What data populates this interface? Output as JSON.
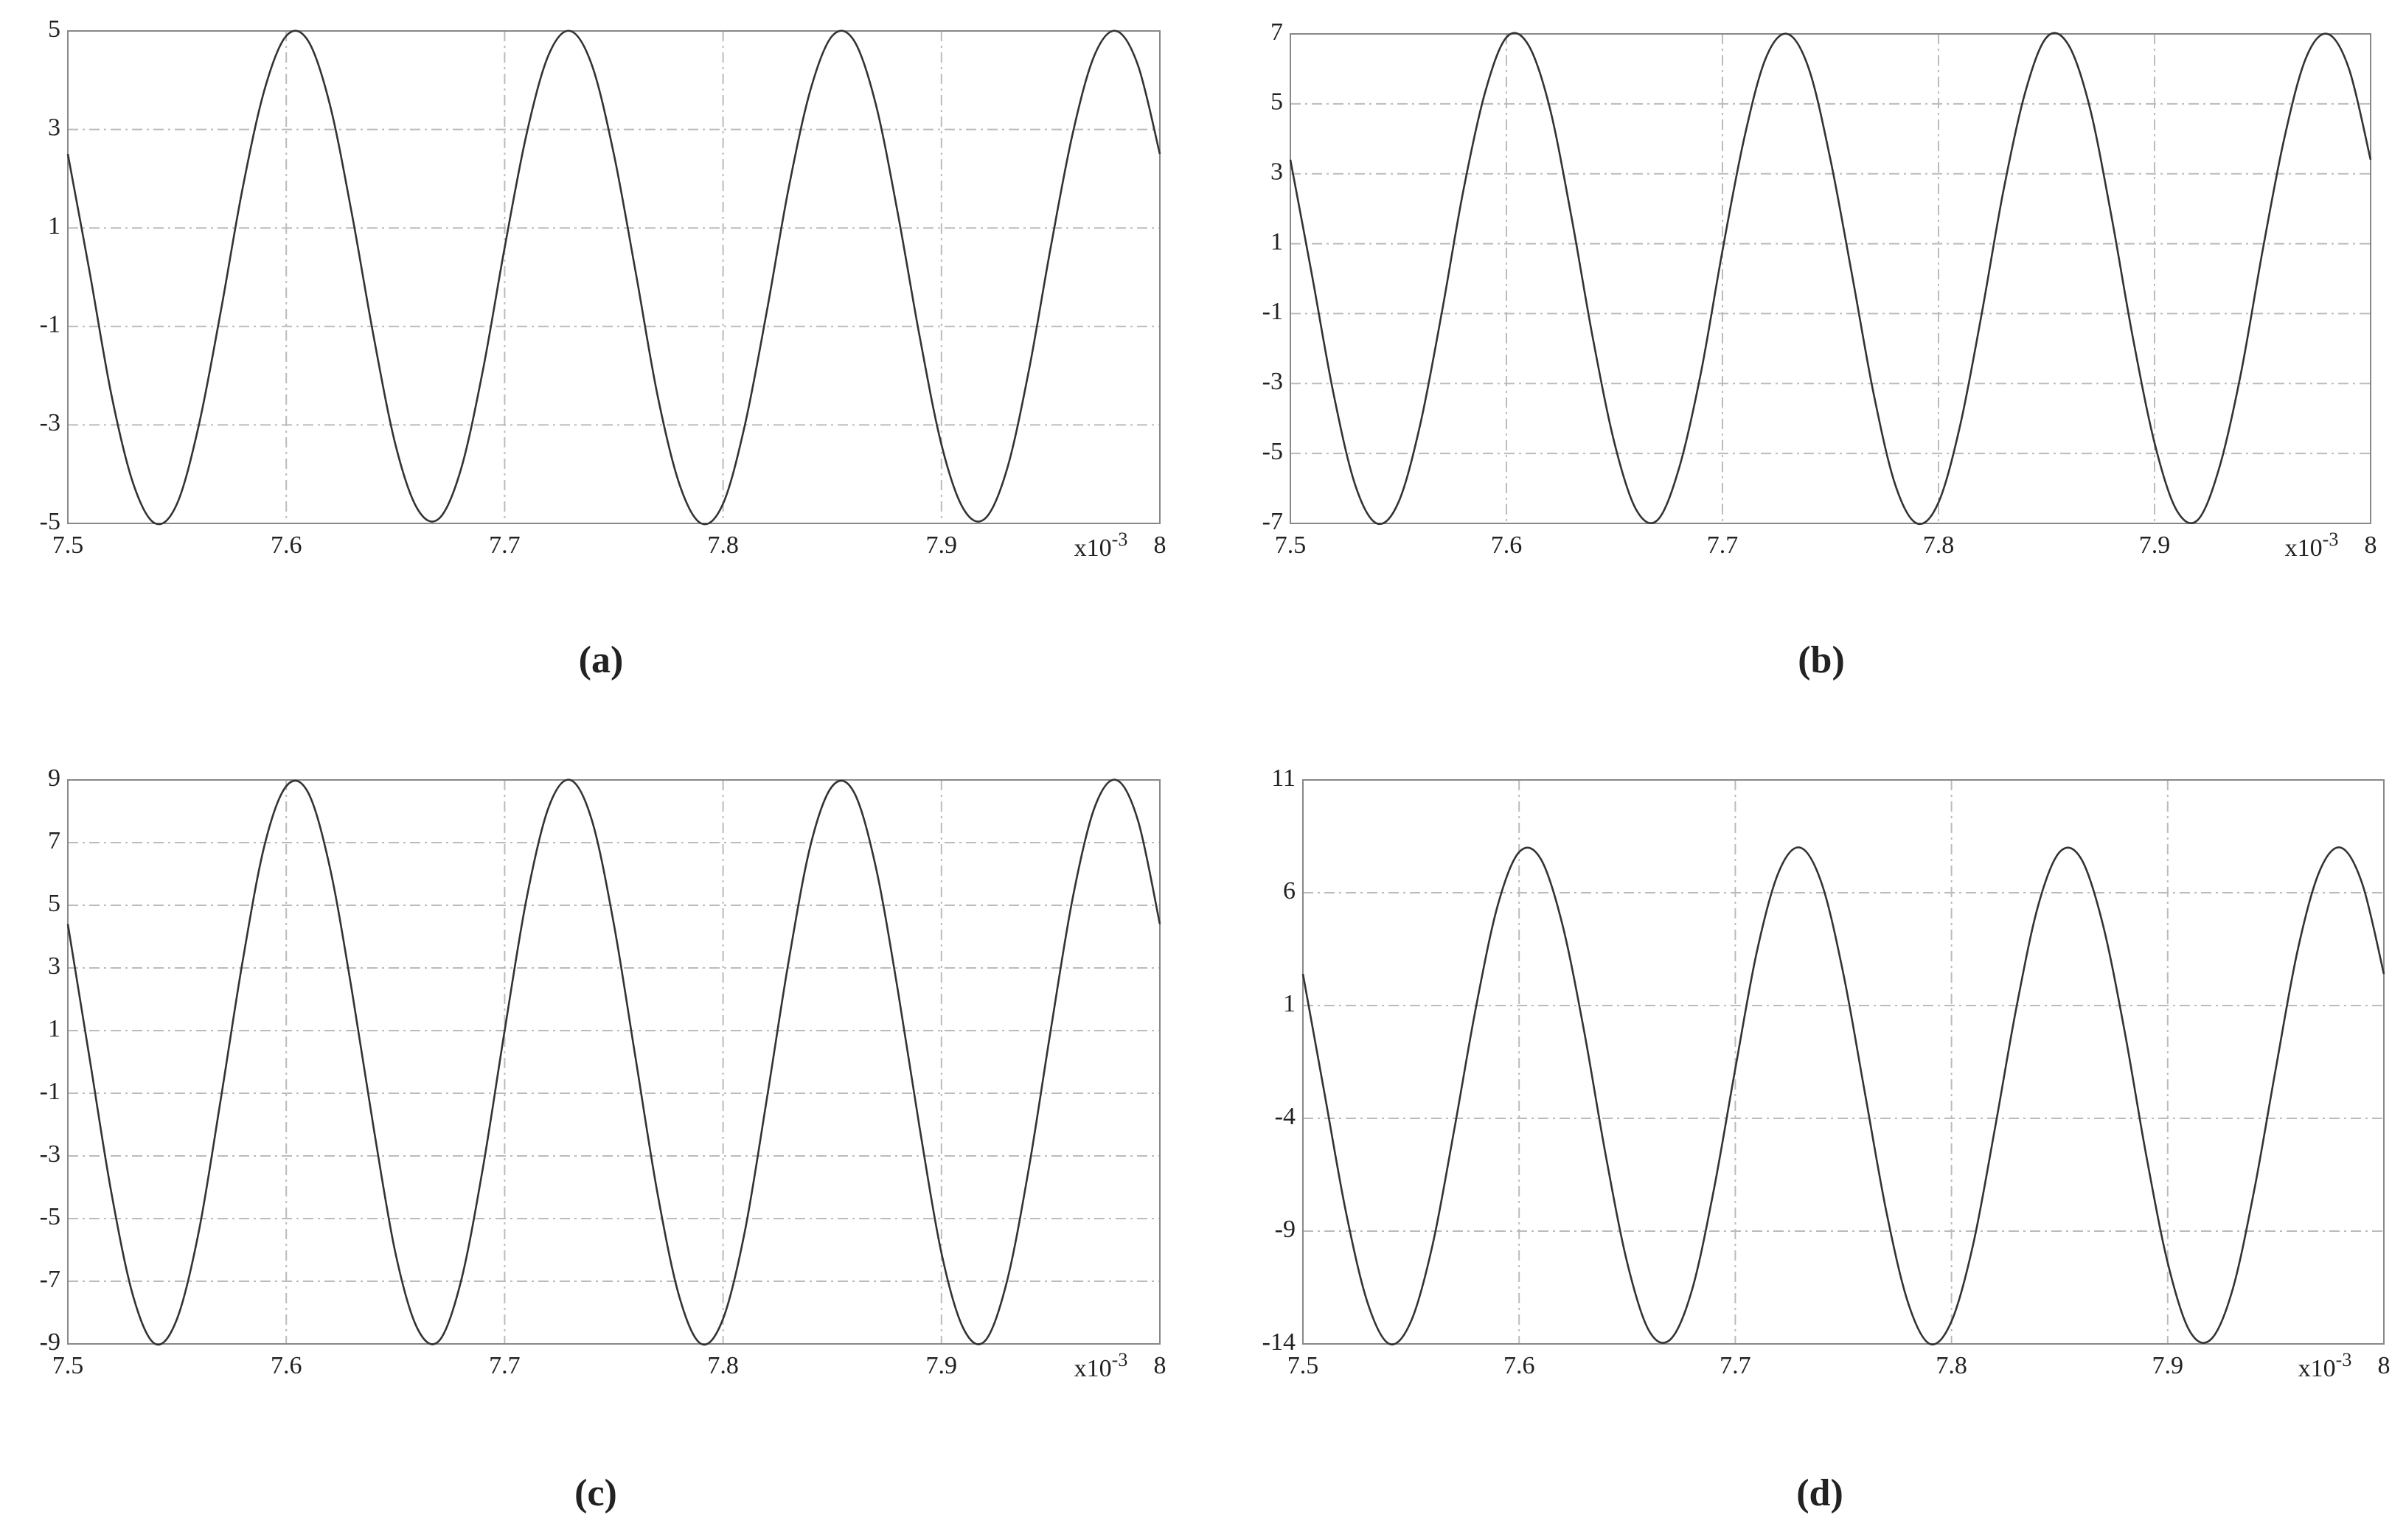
{
  "chart_data": [
    {
      "type": "line",
      "label": "(a)",
      "color": "#333333",
      "grid": true,
      "x_multiplier": "x10",
      "x_exponent": "-3",
      "xlim": [
        7.5,
        8
      ],
      "xticks": [
        7.5,
        7.6,
        7.7,
        7.8,
        7.9,
        8
      ],
      "ylim": [
        -5,
        5
      ],
      "yticks": [
        -5,
        -3,
        -1,
        1,
        3,
        5
      ],
      "x": [
        7.5,
        7.51,
        7.52,
        7.53,
        7.54,
        7.55,
        7.56,
        7.57,
        7.58,
        7.59,
        7.6,
        7.61,
        7.62,
        7.63,
        7.64,
        7.65,
        7.66,
        7.67,
        7.68,
        7.69,
        7.7,
        7.71,
        7.72,
        7.73,
        7.74,
        7.75,
        7.76,
        7.77,
        7.78,
        7.79,
        7.8,
        7.81,
        7.82,
        7.83,
        7.84,
        7.85,
        7.86,
        7.87,
        7.88,
        7.89,
        7.9,
        7.91,
        7.92,
        7.93,
        7.94,
        7.95,
        7.96,
        7.97,
        7.98,
        7.99,
        8
      ],
      "values": [
        2.5,
        0.1,
        -2.4,
        -4.2,
        -5.0,
        -4.6,
        -3.0,
        -0.7,
        1.8,
        3.8,
        4.9,
        4.8,
        3.5,
        1.3,
        -1.2,
        -3.4,
        -4.7,
        -4.9,
        -3.9,
        -1.9,
        0.6,
        2.9,
        4.5,
        5.0,
        4.3,
        2.5,
        0.1,
        -2.4,
        -4.2,
        -5.0,
        -4.6,
        -3.0,
        -0.7,
        1.8,
        3.8,
        4.9,
        4.8,
        3.5,
        1.3,
        -1.2,
        -3.4,
        -4.7,
        -4.9,
        -3.9,
        -1.9,
        0.6,
        2.9,
        4.5,
        5.0,
        4.3,
        2.5
      ]
    },
    {
      "type": "line",
      "label": "(b)",
      "color": "#333333",
      "grid": true,
      "x_multiplier": "x10",
      "x_exponent": "-3",
      "xlim": [
        7.5,
        8
      ],
      "xticks": [
        7.5,
        7.6,
        7.7,
        7.8,
        7.9,
        8
      ],
      "ylim": [
        -7,
        7
      ],
      "yticks": [
        -7,
        -5,
        -3,
        -1,
        1,
        3,
        5,
        7
      ],
      "x": [
        7.5,
        7.51,
        7.52,
        7.53,
        7.54,
        7.55,
        7.56,
        7.57,
        7.58,
        7.59,
        7.6,
        7.61,
        7.62,
        7.63,
        7.64,
        7.65,
        7.66,
        7.67,
        7.68,
        7.69,
        7.7,
        7.71,
        7.72,
        7.73,
        7.74,
        7.75,
        7.76,
        7.77,
        7.78,
        7.79,
        7.8,
        7.81,
        7.82,
        7.83,
        7.84,
        7.85,
        7.86,
        7.87,
        7.88,
        7.89,
        7.9,
        7.91,
        7.92,
        7.93,
        7.94,
        7.95,
        7.96,
        7.97,
        7.98,
        7.99,
        8
      ],
      "values": [
        3.4,
        0.1,
        -3.3,
        -5.9,
        -7.0,
        -6.4,
        -4.2,
        -1.0,
        2.5,
        5.3,
        6.9,
        6.7,
        4.9,
        1.8,
        -1.7,
        -4.7,
        -6.6,
        -6.9,
        -5.4,
        -2.7,
        0.8,
        4.0,
        6.3,
        7.0,
        6.0,
        3.4,
        0.1,
        -3.3,
        -5.9,
        -7.0,
        -6.4,
        -4.2,
        -1.0,
        2.5,
        5.3,
        6.9,
        6.7,
        4.9,
        1.8,
        -1.7,
        -4.7,
        -6.6,
        -6.9,
        -5.4,
        -2.7,
        0.8,
        4.0,
        6.3,
        7.0,
        6.0,
        3.4
      ]
    },
    {
      "type": "line",
      "label": "(c)",
      "color": "#333333",
      "grid": true,
      "x_multiplier": "x10",
      "x_exponent": "-3",
      "xlim": [
        7.5,
        8
      ],
      "xticks": [
        7.5,
        7.6,
        7.7,
        7.8,
        7.9,
        8
      ],
      "ylim": [
        -9,
        9
      ],
      "yticks": [
        -9,
        -7,
        -5,
        -3,
        -1,
        1,
        3,
        5,
        7,
        9
      ],
      "x": [
        7.5,
        7.51,
        7.52,
        7.53,
        7.54,
        7.55,
        7.56,
        7.57,
        7.58,
        7.59,
        7.6,
        7.61,
        7.62,
        7.63,
        7.64,
        7.65,
        7.66,
        7.67,
        7.68,
        7.69,
        7.7,
        7.71,
        7.72,
        7.73,
        7.74,
        7.75,
        7.76,
        7.77,
        7.78,
        7.79,
        7.8,
        7.81,
        7.82,
        7.83,
        7.84,
        7.85,
        7.86,
        7.87,
        7.88,
        7.89,
        7.9,
        7.91,
        7.92,
        7.93,
        7.94,
        7.95,
        7.96,
        7.97,
        7.98,
        7.99,
        8
      ],
      "values": [
        4.4,
        0.1,
        -4.2,
        -7.5,
        -9.0,
        -8.2,
        -5.4,
        -1.2,
        3.2,
        6.9,
        8.8,
        8.6,
        6.2,
        2.3,
        -2.1,
        -6.1,
        -8.5,
        -8.9,
        -7.0,
        -3.4,
        1.0,
        5.2,
        8.1,
        9.0,
        7.7,
        4.4,
        0.1,
        -4.2,
        -7.5,
        -9.0,
        -8.2,
        -5.4,
        -1.2,
        3.2,
        6.9,
        8.8,
        8.6,
        6.2,
        2.3,
        -2.1,
        -6.1,
        -8.5,
        -8.9,
        -7.0,
        -3.4,
        1.0,
        5.2,
        8.1,
        9.0,
        7.7,
        4.4
      ]
    },
    {
      "type": "line",
      "label": "(d)",
      "color": "#333333",
      "grid": true,
      "x_multiplier": "x10",
      "x_exponent": "-3",
      "xlim": [
        7.5,
        8
      ],
      "xticks": [
        7.5,
        7.6,
        7.7,
        7.8,
        7.9,
        8
      ],
      "ylim": [
        -14,
        11
      ],
      "yticks": [
        -14,
        -9,
        -4,
        1,
        6,
        11
      ],
      "x": [
        7.5,
        7.51,
        7.52,
        7.53,
        7.54,
        7.55,
        7.56,
        7.57,
        7.58,
        7.59,
        7.6,
        7.61,
        7.62,
        7.63,
        7.64,
        7.65,
        7.66,
        7.67,
        7.68,
        7.69,
        7.7,
        7.71,
        7.72,
        7.73,
        7.74,
        7.75,
        7.76,
        7.77,
        7.78,
        7.79,
        7.8,
        7.81,
        7.82,
        7.83,
        7.84,
        7.85,
        7.86,
        7.87,
        7.88,
        7.89,
        7.9,
        7.91,
        7.92,
        7.93,
        7.94,
        7.95,
        7.96,
        7.97,
        7.98,
        7.99,
        8
      ],
      "values": [
        2.4,
        -2.9,
        -8.2,
        -12.2,
        -14.0,
        -13.0,
        -9.6,
        -4.5,
        0.9,
        5.4,
        7.8,
        7.5,
        4.6,
        -0.1,
        -5.6,
        -10.4,
        -13.4,
        -13.8,
        -11.6,
        -7.2,
        -1.8,
        3.4,
        6.9,
        8.0,
        6.4,
        2.4,
        -2.9,
        -8.2,
        -12.2,
        -14.0,
        -13.0,
        -9.6,
        -4.5,
        0.9,
        5.4,
        7.8,
        7.5,
        4.6,
        -0.1,
        -5.6,
        -10.4,
        -13.4,
        -13.8,
        -11.6,
        -7.2,
        -1.8,
        3.4,
        6.9,
        8.0,
        6.4,
        2.4
      ]
    }
  ]
}
